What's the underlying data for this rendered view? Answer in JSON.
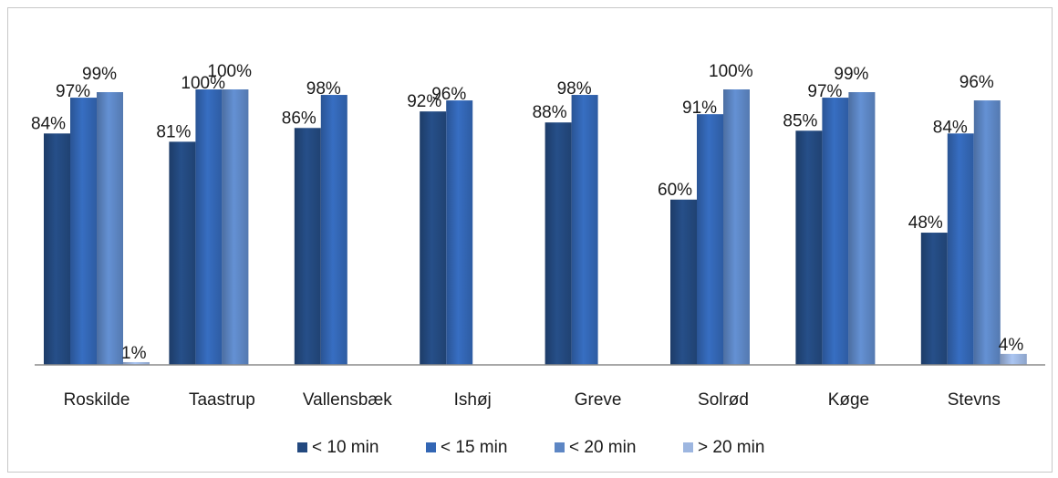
{
  "chart_data": {
    "type": "bar",
    "categories": [
      "Roskilde",
      "Taastrup",
      "Vallensbæk",
      "Ishøj",
      "Greve",
      "Solrød",
      "Køge",
      "Stevns"
    ],
    "series": [
      {
        "name": "< 10 min",
        "values": [
          84,
          81,
          86,
          92,
          88,
          60,
          85,
          48
        ],
        "labels": [
          "84%",
          "81%",
          "86%",
          "92%",
          "88%",
          "60%",
          "85%",
          "48%"
        ]
      },
      {
        "name": "< 15 min",
        "values": [
          97,
          100,
          98,
          96,
          98,
          91,
          97,
          84
        ],
        "labels": [
          "97%",
          "100%",
          "98%",
          "96%",
          "98%",
          "91%",
          "97%",
          "84%"
        ]
      },
      {
        "name": "< 20 min",
        "values": [
          99,
          100,
          null,
          null,
          null,
          100,
          99,
          96
        ],
        "labels": [
          "99%",
          "100%",
          "",
          "",
          "",
          "100%",
          "99%",
          "96%"
        ]
      },
      {
        "name": "> 20 min",
        "values": [
          1,
          null,
          null,
          null,
          null,
          null,
          null,
          4
        ],
        "labels": [
          "1%",
          "",
          "",
          "",
          "",
          "",
          "",
          "4%"
        ]
      }
    ],
    "ylim": [
      0,
      100
    ],
    "colors": [
      "#23497f",
      "#3366b4",
      "#5d86c4",
      "#9db6e0"
    ],
    "grid": false,
    "legend_position": "bottom"
  }
}
